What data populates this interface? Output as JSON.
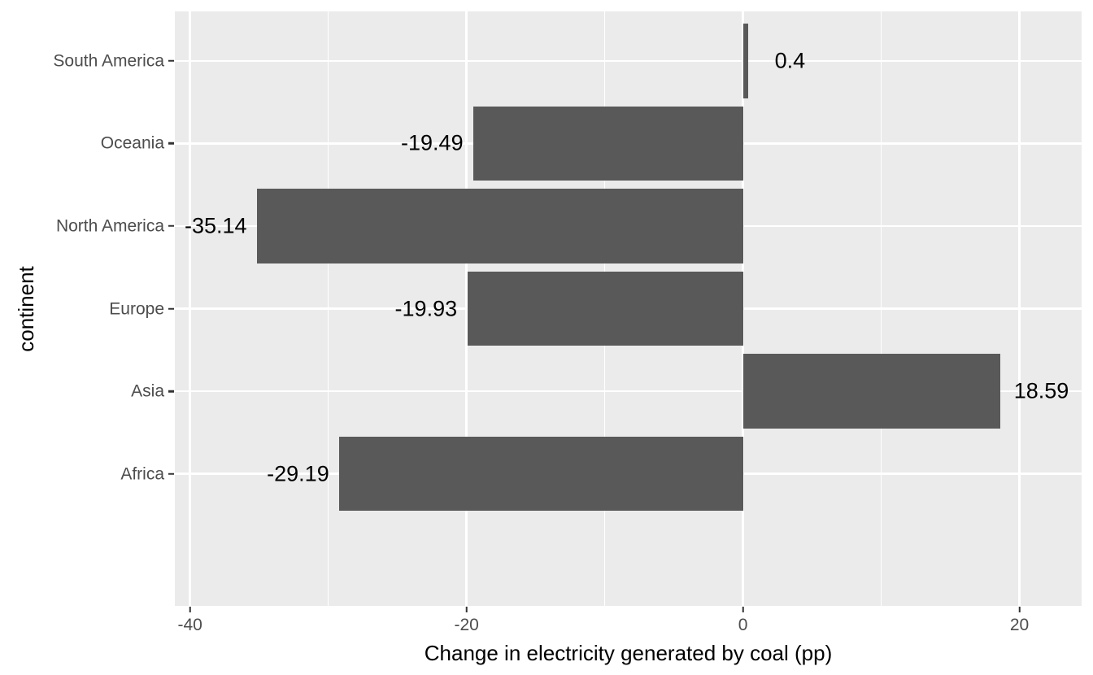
{
  "chart_data": {
    "type": "bar",
    "orientation": "horizontal",
    "title": "",
    "xlabel": "Change in electricity generated by coal (pp)",
    "ylabel": "continent",
    "categories": [
      "South America",
      "Oceania",
      "North America",
      "Europe",
      "Asia",
      "Africa"
    ],
    "values": [
      0.4,
      -19.49,
      -35.14,
      -19.93,
      18.59,
      -29.19
    ],
    "value_labels": [
      "0.4",
      "-19.49",
      "-35.14",
      "-19.93",
      "18.59",
      "-29.19"
    ],
    "x_major_ticks": [
      -40,
      -20,
      0,
      20
    ],
    "x_major_tick_labels": [
      "-40",
      "-20",
      "0",
      "20"
    ],
    "x_minor_ticks": [
      -30,
      -10,
      10
    ],
    "xlim": [
      -41.1,
      24.5
    ],
    "grid": "major+minor-x",
    "legend": "none",
    "colors": {
      "bar_fill": "#595959",
      "panel_background": "#EBEBEB",
      "gridline": "#FFFFFF",
      "axis_text": "#4D4D4D",
      "tick_mark": "#333333",
      "label_text": "#000000",
      "page_background": "#FFFFFF"
    }
  }
}
